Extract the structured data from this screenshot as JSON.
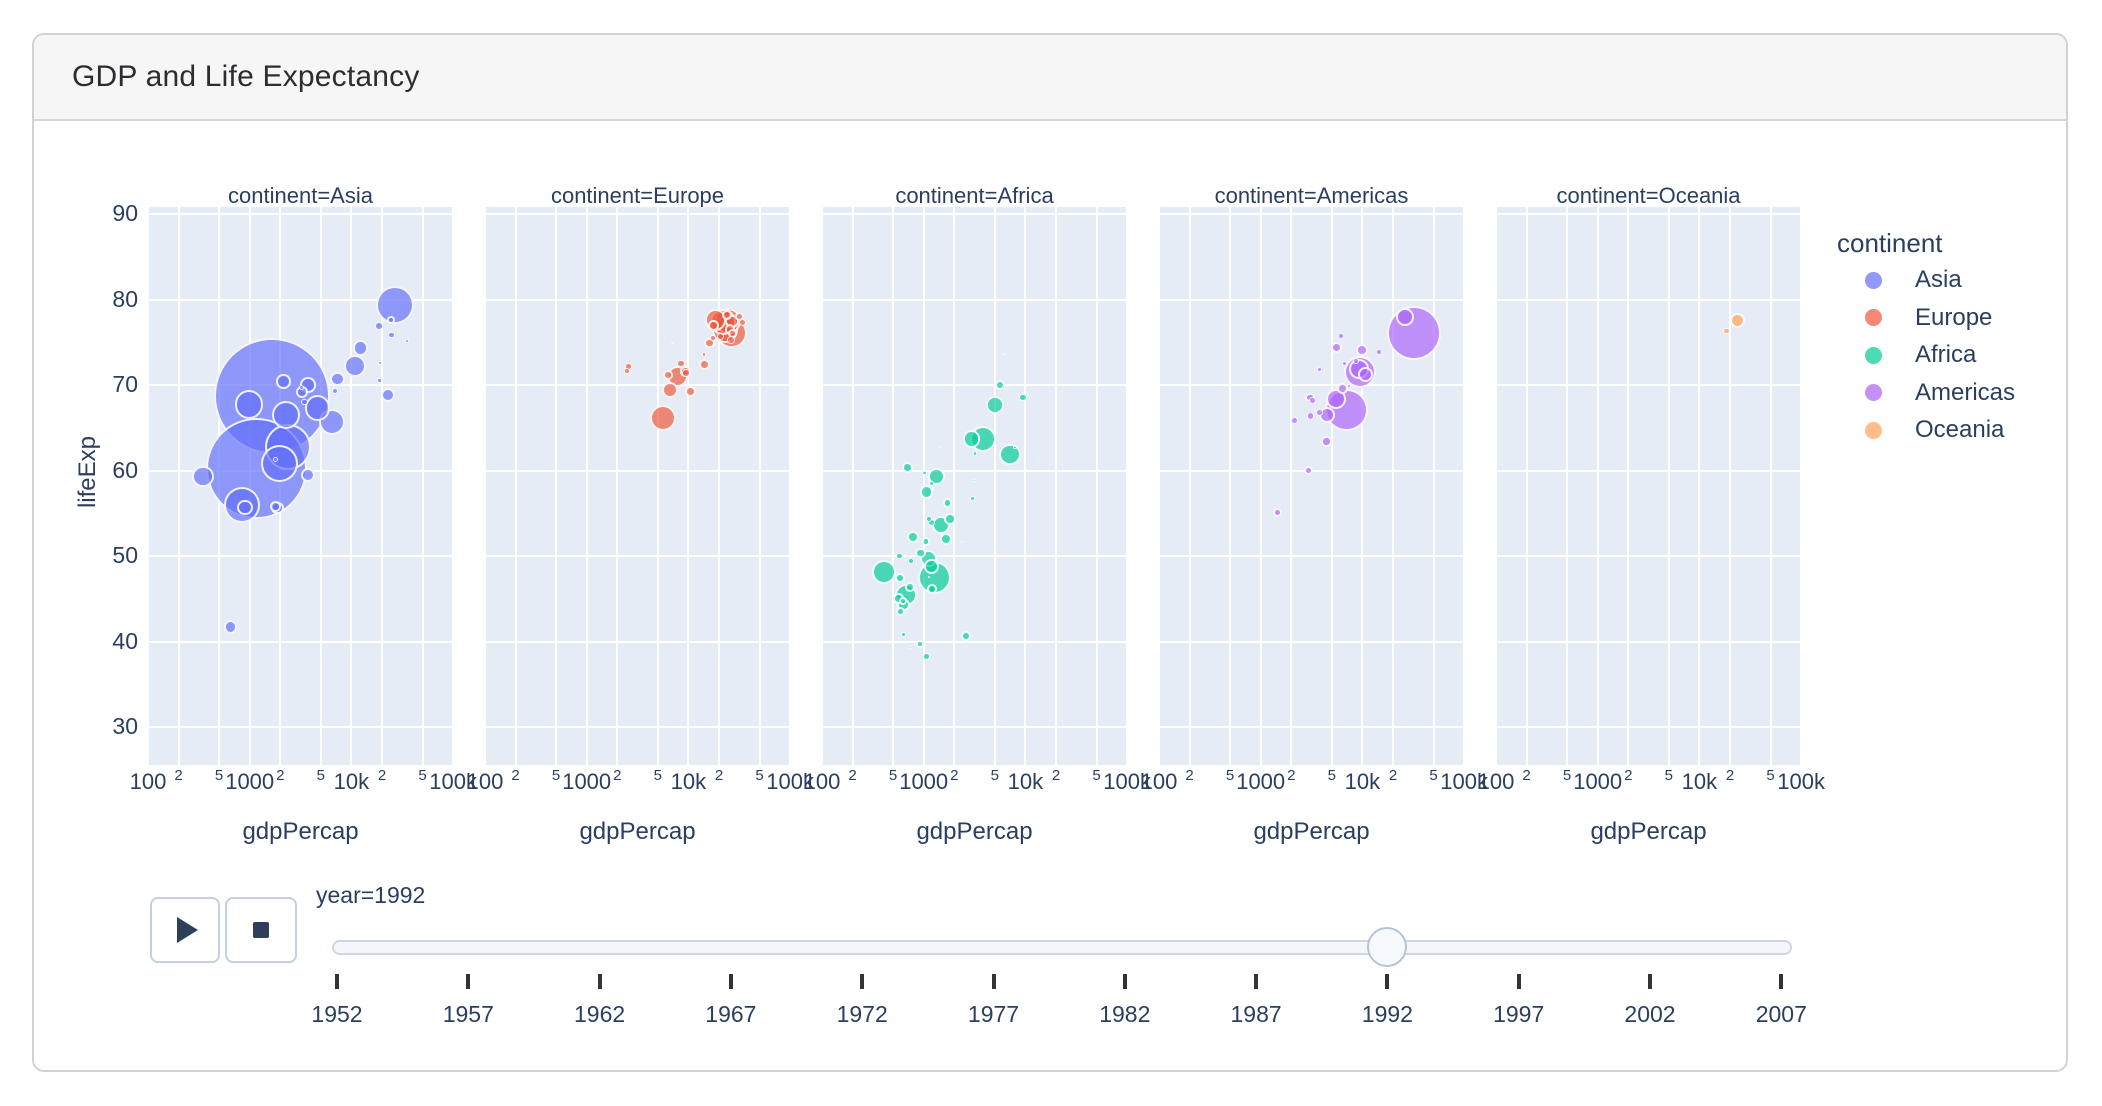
{
  "header": {
    "title": "GDP and Life Expectancy"
  },
  "legend": {
    "title": "continent",
    "items": [
      {
        "label": "Asia",
        "color": "#636EFA"
      },
      {
        "label": "Europe",
        "color": "#EF553B"
      },
      {
        "label": "Africa",
        "color": "#00CC96"
      },
      {
        "label": "Americas",
        "color": "#AB63FA"
      },
      {
        "label": "Oceania",
        "color": "#FFA15A"
      }
    ]
  },
  "controls": {
    "frame_label": "year=1992",
    "play_icon": "play-triangle-icon",
    "stop_icon": "stop-square-icon"
  },
  "slider": {
    "years": [
      "1952",
      "1957",
      "1962",
      "1967",
      "1972",
      "1977",
      "1982",
      "1987",
      "1992",
      "1997",
      "2002",
      "2007"
    ],
    "current_year": "1992"
  },
  "chart_data": {
    "type": "scatter",
    "title": "GDP and Life Expectancy",
    "facet_by": "continent",
    "frame": "year=1992",
    "size_by": "pop",
    "x_axis": {
      "title": "gdpPercap",
      "scale": "log",
      "range": [
        100,
        100000
      ],
      "major_tick_labels": [
        "100",
        "1000",
        "10k",
        "100k"
      ],
      "minor_tick_labels": [
        "2",
        "5"
      ]
    },
    "y_axis": {
      "title": "lifeExp",
      "tick_labels": [
        90,
        80,
        70,
        60,
        50,
        40,
        30
      ],
      "range": [
        26,
        91
      ]
    },
    "grid": true,
    "legend_position": "right",
    "facets": [
      {
        "label": "continent=Asia",
        "name": "Asia",
        "color": "#636EFA",
        "points": [
          [
            649,
            41.7,
            6.9
          ],
          [
            19036,
            72.6,
            2.1
          ],
          [
            838,
            56,
            18.2
          ],
          [
            1785,
            55.8,
            5.4
          ],
          [
            1656,
            68.7,
            58
          ],
          [
            24757,
            77.6,
            4.1
          ],
          [
            1164,
            60.2,
            50.4
          ],
          [
            2383,
            62.7,
            23.1
          ],
          [
            6426,
            65.7,
            13.3
          ],
          [
            3746,
            59.5,
            7.2
          ],
          [
            18616,
            76.9,
            3.8
          ],
          [
            26825,
            79.4,
            19
          ],
          [
            3431,
            68,
            3.4
          ],
          [
            3726,
            70,
            7.8
          ],
          [
            10882,
            72.2,
            11.3
          ],
          [
            34932,
            75.2,
            2
          ],
          [
            6890,
            69.3,
            3.1
          ],
          [
            7277,
            70.7,
            7.4
          ],
          [
            1785,
            61.3,
            2.6
          ],
          [
            347,
            59.3,
            10.9
          ],
          [
            897,
            55.7,
            7.7
          ],
          [
            18962,
            70.5,
            2.3
          ],
          [
            1972,
            60.8,
            18.7
          ],
          [
            2279,
            66.5,
            14
          ],
          [
            23000,
            68.8,
            7
          ],
          [
            24770,
            75.8,
            3.1
          ],
          [
            2154,
            70.4,
            7.2
          ],
          [
            3285,
            69.2,
            6.2
          ],
          [
            12281,
            74.3,
            7.8
          ],
          [
            4616,
            67.3,
            12.8
          ],
          [
            989,
            67.7,
            14.3
          ],
          [
            3193,
            69.7,
            2.5
          ],
          [
            1879,
            55.6,
            6.2
          ]
        ]
      },
      {
        "label": "continent=Europe",
        "name": "Europe",
        "color": "#EF553B",
        "points": [
          [
            2497,
            71.6,
            3.1
          ],
          [
            27042,
            76,
            4.8
          ],
          [
            25576,
            76.5,
            5.4
          ],
          [
            2547,
            72.2,
            3.5
          ],
          [
            6303,
            71.2,
            5
          ],
          [
            8448,
            72.5,
            3.6
          ],
          [
            14297,
            72.4,
            5.5
          ],
          [
            26407,
            75.3,
            3.9
          ],
          [
            20647,
            75.7,
            3.8
          ],
          [
            24704,
            77.5,
            12.9
          ],
          [
            26505,
            76.1,
            15.3
          ],
          [
            17541,
            77,
            5.5
          ],
          [
            10536,
            69.2,
            5.5
          ],
          [
            25630,
            78.8,
            1.5
          ],
          [
            17559,
            75.5,
            3.2
          ],
          [
            22014,
            77.4,
            12.9
          ],
          [
            7003,
            74.9,
            1.3
          ],
          [
            26791,
            77.4,
            6.7
          ],
          [
            33965,
            77.3,
            3.5
          ],
          [
            7739,
            71,
            10.6
          ],
          [
            16207,
            74.9,
            5.4
          ],
          [
            6598,
            69.4,
            8.1
          ],
          [
            9325,
            71.6,
            5.3
          ],
          [
            9498,
            71.4,
            3.9
          ],
          [
            14214,
            73.6,
            2.4
          ],
          [
            18603,
            77.6,
            10.7
          ],
          [
            23880,
            78.2,
            5
          ],
          [
            31871,
            78,
            4.5
          ],
          [
            5678,
            66.1,
            13
          ],
          [
            22705,
            76.4,
            13
          ]
        ]
      },
      {
        "label": "continent=Africa",
        "name": "Africa",
        "color": "#00CC96",
        "points": [
          [
            5023,
            67.7,
            8.9
          ],
          [
            2628,
            40.6,
            5
          ],
          [
            1191,
            53.9,
            3.8
          ],
          [
            7954,
            62.7,
            1.9
          ],
          [
            931,
            50.3,
            5.1
          ],
          [
            631,
            44.7,
            4.1
          ],
          [
            1793,
            54.3,
            6
          ],
          [
            747,
            49.4,
            3
          ],
          [
            1058,
            51.7,
            4.2
          ],
          [
            1246,
            57.9,
            1.1
          ],
          [
            672,
            45.5,
            11
          ],
          [
            3044,
            56.7,
            2.6
          ],
          [
            1648,
            52,
            6.1
          ],
          [
            2377,
            51.6,
            1.2
          ],
          [
            3794,
            63.7,
            13.1
          ],
          [
            1132,
            47.5,
            1.1
          ],
          [
            578,
            50,
            3.1
          ],
          [
            407,
            48.1,
            12.3
          ],
          [
            13522,
            61.4,
            1.7
          ],
          [
            665,
            52.6,
            1.7
          ],
          [
            1071,
            57.5,
            6.8
          ],
          [
            593,
            43.5,
            4.4
          ],
          [
            745,
            39.3,
            1.7
          ],
          [
            1341,
            59.3,
            8.5
          ],
          [
            1021,
            59.7,
            2.3
          ],
          [
            636,
            40.8,
            2.4
          ],
          [
            9468,
            68.5,
            3.6
          ],
          [
            779,
            52.2,
            6
          ],
          [
            563,
            45,
            5.4
          ],
          [
            739,
            46.4,
            4.9
          ],
          [
            1191,
            58.5,
            2.5
          ],
          [
            6058,
            69.7,
            1.8
          ],
          [
            2948,
            63.7,
            8.7
          ],
          [
            635,
            44.3,
            6.2
          ],
          [
            3173,
            62,
            2.2
          ],
          [
            581,
            47.4,
            4.9
          ],
          [
            1267,
            47.5,
            16.5
          ],
          [
            6101,
            73.6,
            1.3
          ],
          [
            1429,
            62.7,
            1
          ],
          [
            1713,
            56.2,
            4.9
          ],
          [
            1069,
            38.3,
            3.5
          ],
          [
            926,
            39.7,
            4.2
          ],
          [
            7062,
            61.9,
            10.7
          ],
          [
            1492,
            53.6,
            9.1
          ],
          [
            3163,
            58.8,
            1.6
          ],
          [
            1111,
            49.7,
            8.8
          ],
          [
            1122,
            54.3,
            3.3
          ],
          [
            5581,
            70,
            5
          ],
          [
            1191,
            48.8,
            7.4
          ],
          [
            1210,
            46.1,
            4.9
          ],
          [
            693,
            60.4,
            5.6
          ]
        ]
      },
      {
        "label": "continent=Americas",
        "name": "Americas",
        "color": "#AB63FA",
        "points": [
          [
            9308,
            71.9,
            9.9
          ],
          [
            2961,
            60,
            4.5
          ],
          [
            6950,
            67.1,
            21.3
          ],
          [
            26343,
            78,
            9.1
          ],
          [
            9925,
            74.1,
            6.3
          ],
          [
            5444,
            68.4,
            10
          ],
          [
            6160,
            75.7,
            3.1
          ],
          [
            5592,
            74.4,
            5.6
          ],
          [
            3044,
            68.5,
            4.7
          ],
          [
            6413,
            69.6,
            5.6
          ],
          [
            3776,
            66.8,
            3.9
          ],
          [
            4439,
            63.4,
            5.2
          ],
          [
            1456,
            55.1,
            4.5
          ],
          [
            3081,
            66.4,
            3.9
          ],
          [
            3816,
            71.8,
            2.6
          ],
          [
            9472,
            71.5,
            16
          ],
          [
            2170,
            65.8,
            3.5
          ],
          [
            6618,
            72.5,
            2.7
          ],
          [
            3239,
            68.2,
            3.6
          ],
          [
            4446,
            66.5,
            8.1
          ],
          [
            14641,
            73.9,
            3.2
          ],
          [
            7370,
            69.9,
            1.9
          ],
          [
            32003,
            76.1,
            27.3
          ],
          [
            8623,
            72.8,
            3
          ],
          [
            10733,
            71.2,
            7.7
          ]
        ]
      },
      {
        "label": "continent=Oceania",
        "name": "Oceania",
        "color": "#FFA15A",
        "points": [
          [
            23425,
            77.6,
            7.5
          ],
          [
            18363,
            76.3,
            3.4
          ]
        ]
      }
    ]
  }
}
